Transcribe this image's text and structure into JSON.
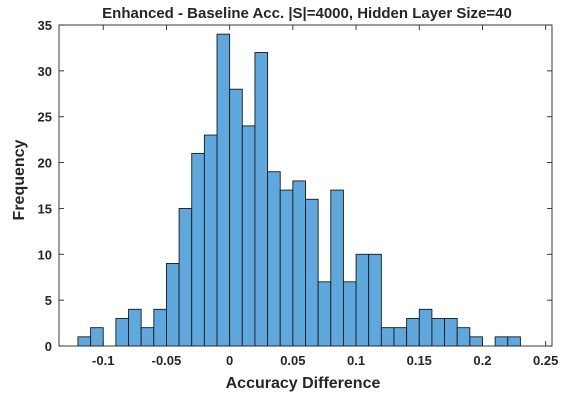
{
  "chart_data": {
    "type": "bar",
    "title": "Enhanced - Baseline Acc. |S|=4000, Hidden Layer Size=40",
    "xlabel": "Accuracy Difference",
    "ylabel": "Frequency",
    "xlim": [
      -0.135,
      0.255
    ],
    "ylim": [
      0,
      35
    ],
    "bin_width": 0.01,
    "bin_edges": [
      -0.12,
      -0.11,
      -0.09,
      -0.08,
      -0.07,
      -0.06,
      -0.05,
      -0.04,
      -0.03,
      -0.02,
      -0.01,
      0.0,
      0.01,
      0.02,
      0.03,
      0.04,
      0.05,
      0.06,
      0.07,
      0.08,
      0.09,
      0.1,
      0.11,
      0.12,
      0.13,
      0.14,
      0.15,
      0.16,
      0.17,
      0.18,
      0.19,
      0.21,
      0.22,
      0.23
    ],
    "values": [
      1,
      2,
      3,
      4,
      2,
      4,
      9,
      15,
      21,
      23,
      34,
      28,
      24,
      32,
      19,
      17,
      18,
      16,
      7,
      17,
      7,
      10,
      10,
      2,
      2,
      3,
      4,
      3,
      3,
      2,
      1,
      1,
      1
    ],
    "bar_color": "#5ea8dd",
    "edge_color": "#1a1a1a",
    "xticks": [
      -0.1,
      -0.05,
      0,
      0.05,
      0.1,
      0.15,
      0.2,
      0.25
    ],
    "xtick_labels": [
      "-0.1",
      "-0.05",
      "0",
      "0.05",
      "0.1",
      "0.15",
      "0.2",
      "0.25"
    ],
    "yticks": [
      0,
      5,
      10,
      15,
      20,
      25,
      30,
      35
    ],
    "ytick_labels": [
      "0",
      "5",
      "10",
      "15",
      "20",
      "25",
      "30",
      "35"
    ],
    "grid": false,
    "box": true
  }
}
